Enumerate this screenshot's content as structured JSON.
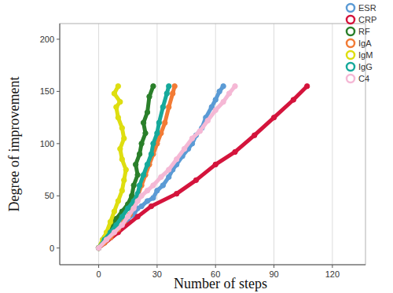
{
  "chart_data": {
    "type": "line",
    "x_label": "Number of steps",
    "y_label": "Degree of improvement",
    "xlim": [
      -20,
      137
    ],
    "xticks": [
      0,
      30,
      60,
      90,
      120
    ],
    "ylim": [
      -16,
      215
    ],
    "yticks": [
      0,
      50,
      100,
      150,
      200
    ],
    "grid": "x",
    "legend": "top-right",
    "marker": "circle",
    "series": [
      {
        "name": "ESR",
        "color": "#5b9bd5",
        "x": [
          0,
          3,
          6,
          8,
          12,
          15,
          18,
          20,
          22,
          25,
          28,
          30,
          33,
          36,
          38,
          40,
          43,
          46,
          48,
          50,
          53,
          55,
          58,
          60,
          62,
          64
        ],
        "values": [
          0,
          5,
          10,
          15,
          20,
          28,
          32,
          38,
          40,
          45,
          48,
          55,
          60,
          68,
          75,
          80,
          88,
          95,
          100,
          108,
          115,
          125,
          135,
          142,
          150,
          155
        ]
      },
      {
        "name": "CRP",
        "color": "#d4143c",
        "x": [
          0,
          10,
          20,
          27,
          40,
          50,
          60,
          70,
          80,
          90,
          100,
          107
        ],
        "values": [
          0,
          15,
          30,
          40,
          52,
          65,
          80,
          92,
          108,
          125,
          142,
          155
        ]
      },
      {
        "name": "RF",
        "color": "#2a7f2a",
        "x": [
          0,
          3,
          6,
          9,
          12,
          15,
          17,
          18,
          20,
          19,
          21,
          22,
          24,
          23,
          25,
          26,
          28
        ],
        "values": [
          0,
          10,
          20,
          28,
          35,
          42,
          50,
          60,
          70,
          80,
          90,
          100,
          110,
          120,
          130,
          145,
          155
        ]
      },
      {
        "name": "IgA",
        "color": "#f27b35",
        "x": [
          0,
          3,
          6,
          10,
          13,
          16,
          18,
          20,
          22,
          24,
          26,
          28,
          30,
          32,
          34,
          36,
          38,
          39
        ],
        "values": [
          0,
          5,
          10,
          18,
          25,
          32,
          40,
          50,
          60,
          70,
          80,
          90,
          100,
          110,
          120,
          135,
          148,
          155
        ]
      },
      {
        "name": "IgM",
        "color": "#dede10",
        "x": [
          0,
          2,
          4,
          6,
          8,
          10,
          12,
          13,
          14,
          12,
          11,
          13,
          12,
          10,
          9,
          11,
          8,
          10
        ],
        "values": [
          0,
          8,
          15,
          25,
          35,
          45,
          55,
          65,
          75,
          85,
          95,
          105,
          115,
          125,
          135,
          140,
          148,
          155
        ]
      },
      {
        "name": "IgG",
        "color": "#16a99b",
        "x": [
          0,
          3,
          6,
          9,
          12,
          15,
          18,
          20,
          21,
          23,
          25,
          27,
          28,
          30,
          31,
          33,
          35,
          36
        ],
        "values": [
          0,
          8,
          15,
          22,
          30,
          38,
          45,
          52,
          60,
          70,
          80,
          90,
          100,
          110,
          120,
          135,
          148,
          155
        ]
      },
      {
        "name": "C4",
        "color": "#f5b8d5",
        "x": [
          0,
          4,
          8,
          12,
          15,
          18,
          20,
          22,
          25,
          28,
          32,
          36,
          40,
          44,
          48,
          52,
          56,
          60,
          64,
          67,
          70
        ],
        "values": [
          0,
          8,
          15,
          22,
          30,
          38,
          45,
          50,
          55,
          60,
          68,
          75,
          85,
          95,
          105,
          112,
          122,
          132,
          140,
          148,
          155
        ]
      }
    ]
  }
}
